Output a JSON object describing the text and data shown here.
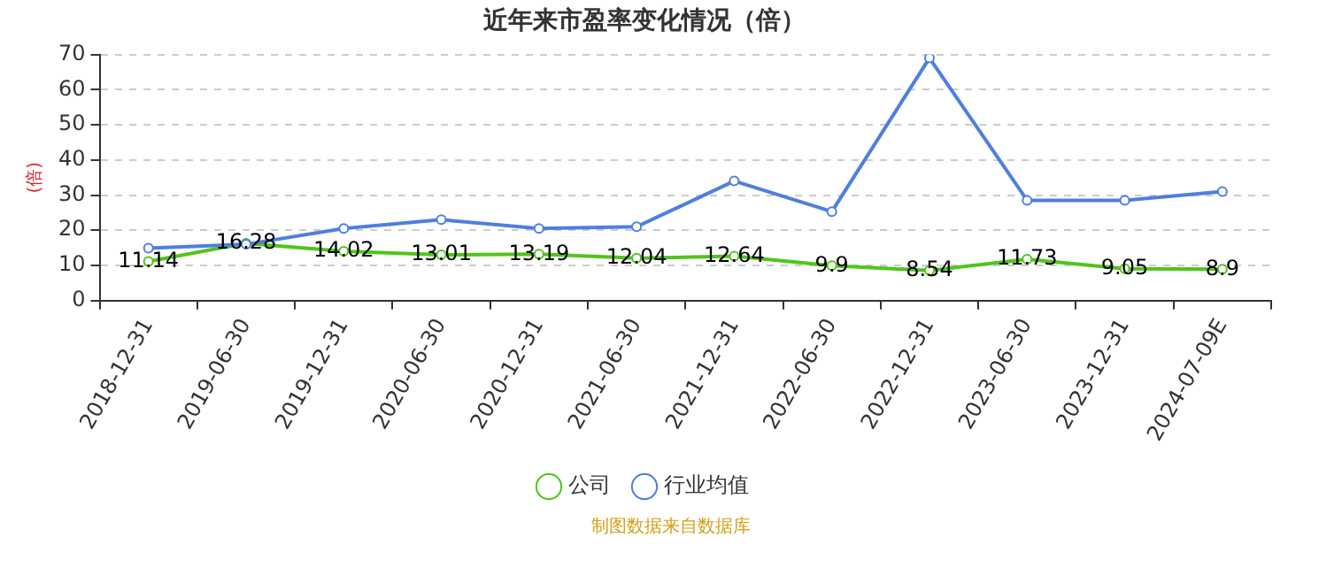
{
  "chart_data": {
    "type": "line",
    "title": "近年来市盈率变化情况（倍）",
    "ylabel": "(倍)",
    "categories": [
      "2018-12-31",
      "2019-06-30",
      "2019-12-31",
      "2020-06-30",
      "2020-12-31",
      "2021-06-30",
      "2021-12-31",
      "2022-06-30",
      "2022-12-31",
      "2023-06-30",
      "2023-12-31",
      "2024-07-09E"
    ],
    "series": [
      {
        "name": "公司",
        "color": "#52c41a",
        "values": [
          11.14,
          16.28,
          14.02,
          13.01,
          13.19,
          12.04,
          12.64,
          9.9,
          8.54,
          11.73,
          9.05,
          8.9
        ],
        "value_labels": [
          "11.14",
          "16.28",
          "14.02",
          "13.01",
          "13.19",
          "12.04",
          "12.64",
          "9.9",
          "8.54",
          "11.73",
          "9.05",
          "8.9"
        ]
      },
      {
        "name": "行业均值",
        "color": "#4e7fe0",
        "values": [
          14.9,
          16,
          20.5,
          23,
          20.5,
          21,
          34,
          25.3,
          69,
          28.5,
          28.5,
          31
        ]
      }
    ],
    "ylim": [
      0,
      70
    ],
    "yticks": [
      0,
      10,
      20,
      30,
      40,
      50,
      60,
      70
    ],
    "grid": "y",
    "legend": "bottom",
    "marker": "circle",
    "line_style": "solid",
    "annotations": [
      "制图数据来自数据库"
    ]
  }
}
